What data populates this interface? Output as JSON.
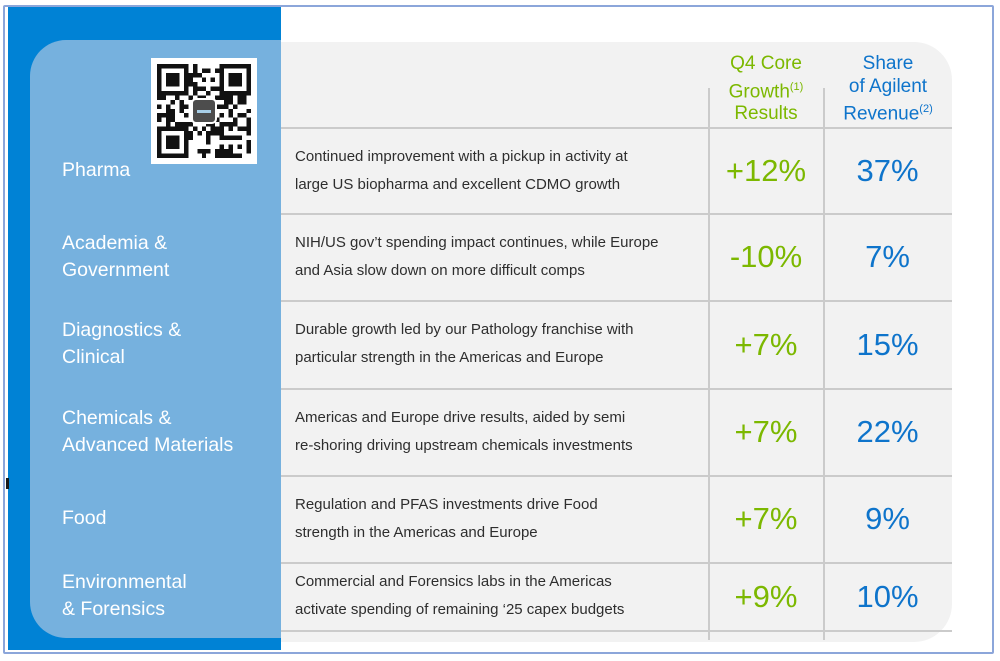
{
  "colors": {
    "dark_blue": "#0082d5",
    "light_blue": "#76b1de",
    "panel_gray": "#f2f2f2",
    "green": "#7cb800",
    "blue": "#0e74cb",
    "divider": "#cbcbcb",
    "frame": "#8ca6da",
    "text": "#2e2e2e"
  },
  "header": {
    "growth": {
      "line1": "Q4 Core",
      "line2": "Growth",
      "line2_sup": "(1)",
      "line3": "Results"
    },
    "share": {
      "line1": "Share",
      "line2": "of Agilent",
      "line3": "Revenue",
      "line3_sup": "(2)"
    }
  },
  "rows": [
    {
      "label_lines": [
        "Pharma"
      ],
      "desc_lines": [
        "Continued improvement with a pickup in activity at",
        "large US biopharma and excellent CDMO growth"
      ],
      "growth": "+12%",
      "share": "37%"
    },
    {
      "label_lines": [
        "Academia &",
        "Government"
      ],
      "desc_lines": [
        "NIH/US gov’t spending impact continues, while Europe",
        "and Asia slow down on more difficult comps"
      ],
      "growth": "-10%",
      "share": "7%"
    },
    {
      "label_lines": [
        "Diagnostics &",
        "Clinical"
      ],
      "desc_lines": [
        "Durable growth led by our Pathology franchise with",
        "particular strength in the Americas and Europe"
      ],
      "growth": "+7%",
      "share": "15%"
    },
    {
      "label_lines": [
        "Chemicals &",
        "Advanced Materials"
      ],
      "desc_lines": [
        "Americas and Europe drive results, aided by semi",
        "re-shoring driving upstream chemicals investments"
      ],
      "growth": "+7%",
      "share": "22%"
    },
    {
      "label_lines": [
        "Food"
      ],
      "desc_lines": [
        "Regulation and PFAS investments drive Food",
        "strength in the Americas and Europe"
      ],
      "growth": "+7%",
      "share": "9%"
    },
    {
      "label_lines": [
        "Environmental",
        "& Forensics"
      ],
      "desc_lines": [
        "Commercial and Forensics labs in the Americas",
        "activate spending of remaining ‘25 capex budgets"
      ],
      "growth": "+9%",
      "share": "10%"
    }
  ]
}
